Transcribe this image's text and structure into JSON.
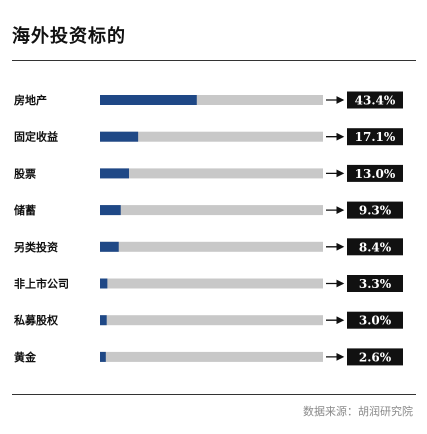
{
  "title": "海外投资标的",
  "source": "数据来源：胡润研究院",
  "colors": {
    "bar": "#1f4886",
    "track": "#c8c8c8",
    "label_box": "#111111"
  },
  "chart_data": {
    "type": "bar",
    "orientation": "horizontal",
    "title": "海外投资标的",
    "categories": [
      "房地产",
      "固定收益",
      "股票",
      "储蓄",
      "另类投资",
      "非上市公司",
      "私募股权",
      "黄金"
    ],
    "values": [
      43.4,
      17.1,
      13.0,
      9.3,
      8.4,
      3.3,
      3.0,
      2.6
    ],
    "value_labels": [
      "43.4%",
      "17.1%",
      "13.0%",
      "9.3%",
      "8.4%",
      "3.3%",
      "3.0%",
      "2.6%"
    ],
    "xlim": [
      0,
      100
    ],
    "grid": false,
    "legend": "none"
  }
}
